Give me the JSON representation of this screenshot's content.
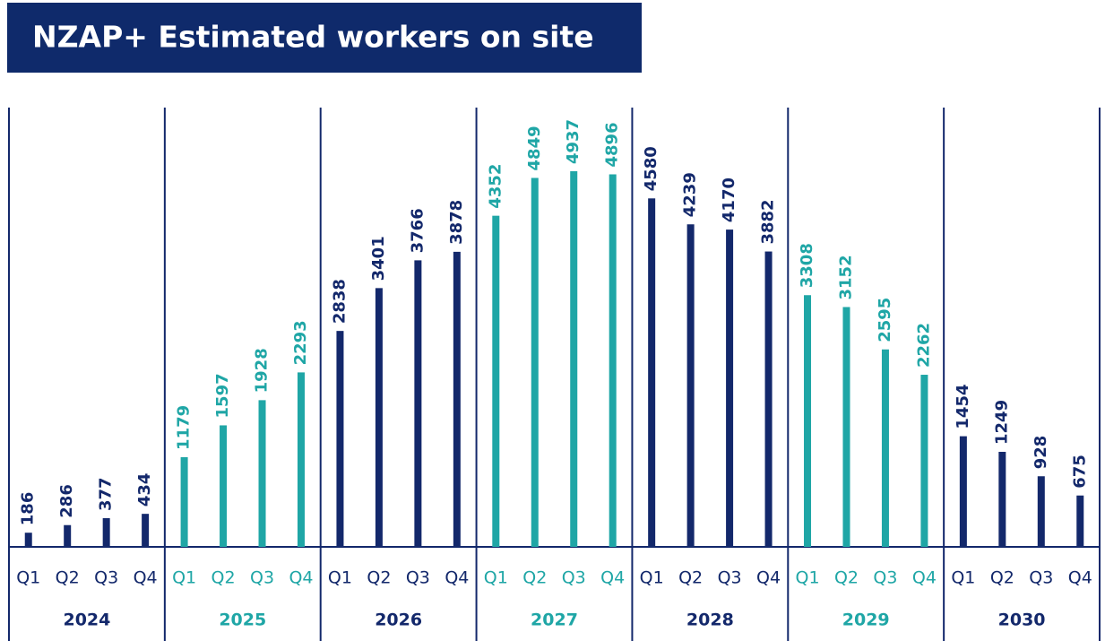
{
  "chart_data": {
    "type": "bar",
    "title": "NZAP+ Estimated workers on site",
    "groups": [
      {
        "name": "2024",
        "color": "#13286b",
        "categories": [
          "Q1",
          "Q2",
          "Q3",
          "Q4"
        ],
        "values": [
          186,
          286,
          377,
          434
        ]
      },
      {
        "name": "2025",
        "color": "#1fa6a6",
        "categories": [
          "Q1",
          "Q2",
          "Q3",
          "Q4"
        ],
        "values": [
          1179,
          1597,
          1928,
          2293
        ]
      },
      {
        "name": "2026",
        "color": "#13286b",
        "categories": [
          "Q1",
          "Q2",
          "Q3",
          "Q4"
        ],
        "values": [
          2838,
          3401,
          3766,
          3878
        ]
      },
      {
        "name": "2027",
        "color": "#1fa6a6",
        "categories": [
          "Q1",
          "Q2",
          "Q3",
          "Q4"
        ],
        "values": [
          4352,
          4849,
          4937,
          4896
        ]
      },
      {
        "name": "2028",
        "color": "#13286b",
        "categories": [
          "Q1",
          "Q2",
          "Q3",
          "Q4"
        ],
        "values": [
          4580,
          4239,
          4170,
          3882
        ]
      },
      {
        "name": "2029",
        "color": "#1fa6a6",
        "categories": [
          "Q1",
          "Q2",
          "Q3",
          "Q4"
        ],
        "values": [
          3308,
          3152,
          2595,
          2262
        ]
      },
      {
        "name": "2030",
        "color": "#13286b",
        "categories": [
          "Q1",
          "Q2",
          "Q3",
          "Q4"
        ],
        "values": [
          1454,
          1249,
          928,
          675
        ]
      }
    ]
  }
}
